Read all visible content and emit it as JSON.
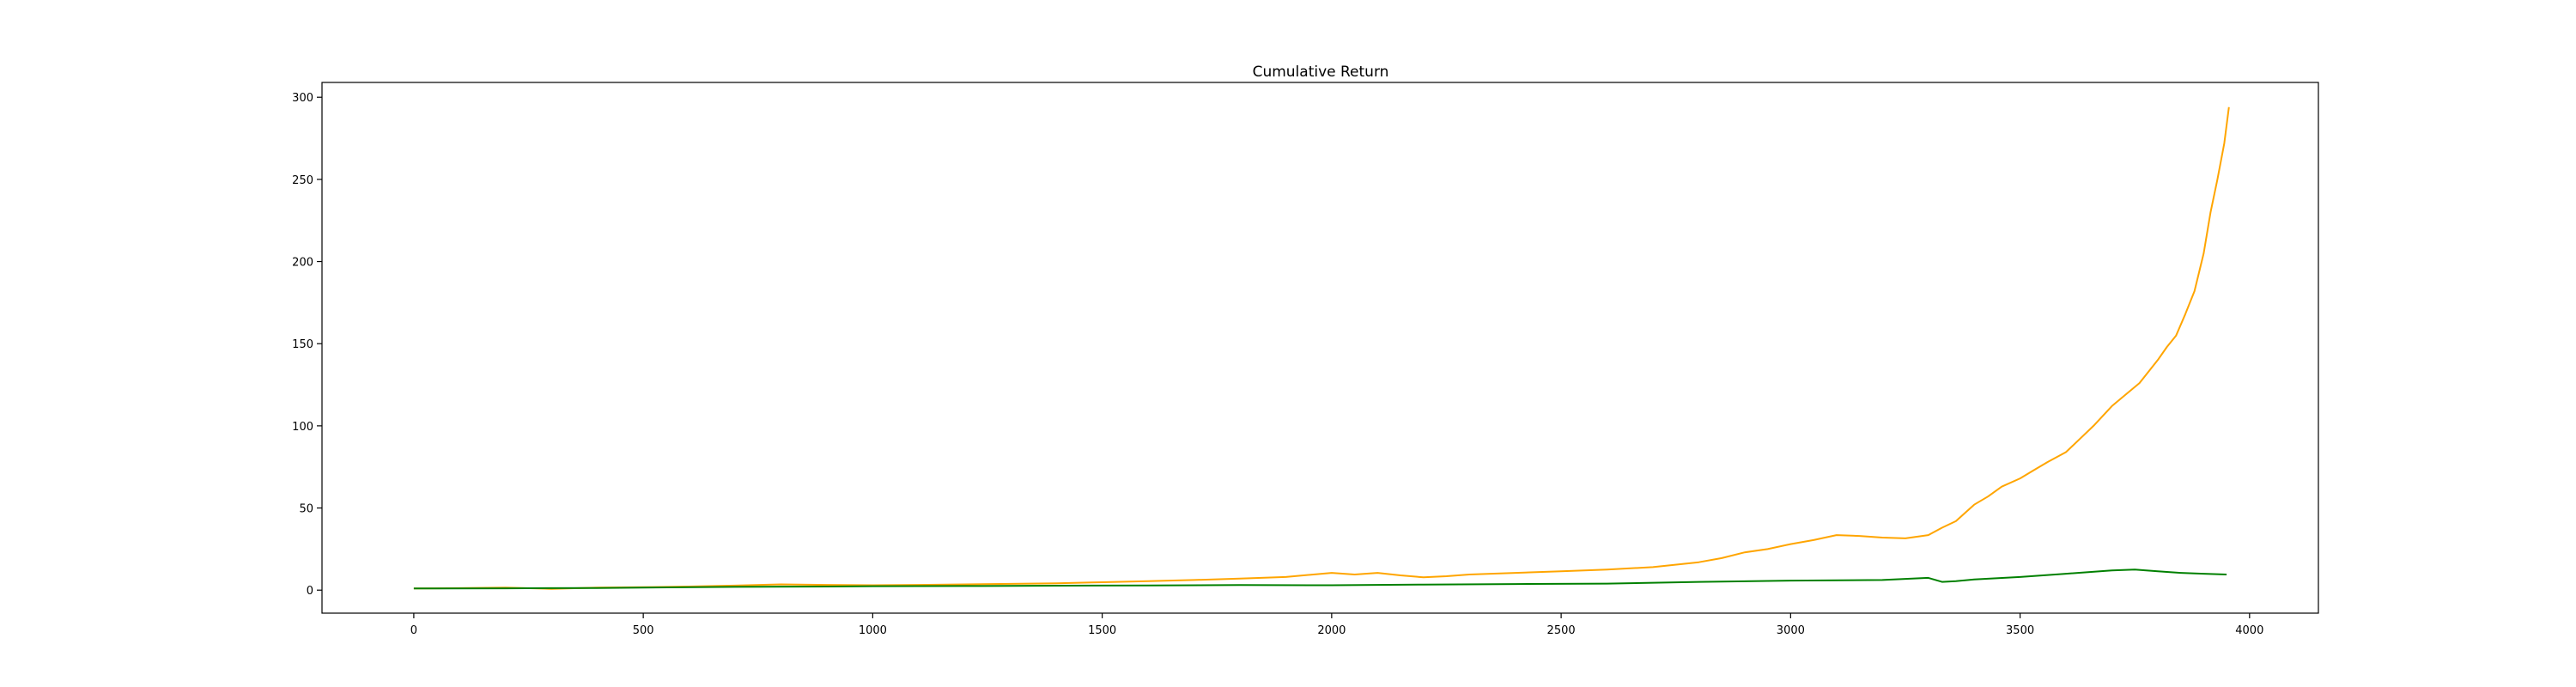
{
  "chart_data": {
    "type": "line",
    "title": "Cumulative Return",
    "xlabel": "",
    "ylabel": "",
    "xlim": [
      -200,
      4150
    ],
    "ylim": [
      -14,
      309
    ],
    "xticks": [
      0,
      500,
      1000,
      1500,
      2000,
      2500,
      3000,
      3500,
      4000
    ],
    "yticks": [
      0,
      50,
      100,
      150,
      200,
      250,
      300
    ],
    "grid": false,
    "legend": "none",
    "series": [
      {
        "color": "#FFA500",
        "x": [
          0,
          100,
          200,
          300,
          400,
          500,
          600,
          700,
          800,
          900,
          1000,
          1100,
          1200,
          1300,
          1400,
          1500,
          1600,
          1700,
          1800,
          1900,
          2000,
          2050,
          2100,
          2150,
          2200,
          2250,
          2300,
          2400,
          2500,
          2600,
          2700,
          2800,
          2850,
          2900,
          2950,
          3000,
          3050,
          3100,
          3150,
          3200,
          3250,
          3300,
          3330,
          3360,
          3400,
          3430,
          3460,
          3500,
          3530,
          3560,
          3600,
          3630,
          3660,
          3700,
          3730,
          3760,
          3800,
          3820,
          3840,
          3860,
          3880,
          3900,
          3915,
          3930,
          3945,
          3955
        ],
        "y": [
          1,
          1.2,
          1.6,
          0.8,
          1.5,
          1.8,
          2.2,
          2.8,
          3.5,
          3.2,
          3.0,
          3.2,
          3.5,
          3.8,
          4.2,
          4.8,
          5.5,
          6.2,
          7.0,
          8.0,
          10.5,
          9.5,
          10.5,
          9.0,
          7.8,
          8.5,
          9.5,
          10.5,
          11.5,
          12.5,
          14.0,
          17.0,
          19.5,
          23.0,
          25.0,
          28.0,
          30.5,
          33.5,
          33.0,
          32.0,
          31.5,
          33.5,
          38.0,
          42.0,
          52.0,
          57.0,
          63.0,
          68.0,
          73.0,
          78.0,
          84.0,
          92.0,
          100.0,
          112.0,
          119.0,
          126.0,
          140.0,
          148.0,
          155.0,
          168.0,
          182.0,
          205.0,
          230.0,
          250.0,
          272.0,
          294.0
        ]
      },
      {
        "color": "#008000",
        "x": [
          0,
          200,
          400,
          500,
          700,
          900,
          1000,
          1200,
          1400,
          1600,
          1800,
          2000,
          2200,
          2400,
          2600,
          2800,
          3000,
          3200,
          3300,
          3330,
          3360,
          3400,
          3500,
          3600,
          3700,
          3750,
          3800,
          3850,
          3900,
          3950
        ],
        "y": [
          1,
          1.1,
          1.3,
          1.6,
          2.0,
          2.2,
          2.4,
          2.5,
          2.7,
          2.9,
          3.1,
          3.0,
          3.4,
          3.7,
          4.0,
          5.0,
          5.8,
          6.2,
          7.5,
          5.0,
          5.5,
          6.5,
          8.0,
          10.0,
          12.0,
          12.5,
          11.5,
          10.5,
          10.0,
          9.5
        ]
      }
    ]
  }
}
